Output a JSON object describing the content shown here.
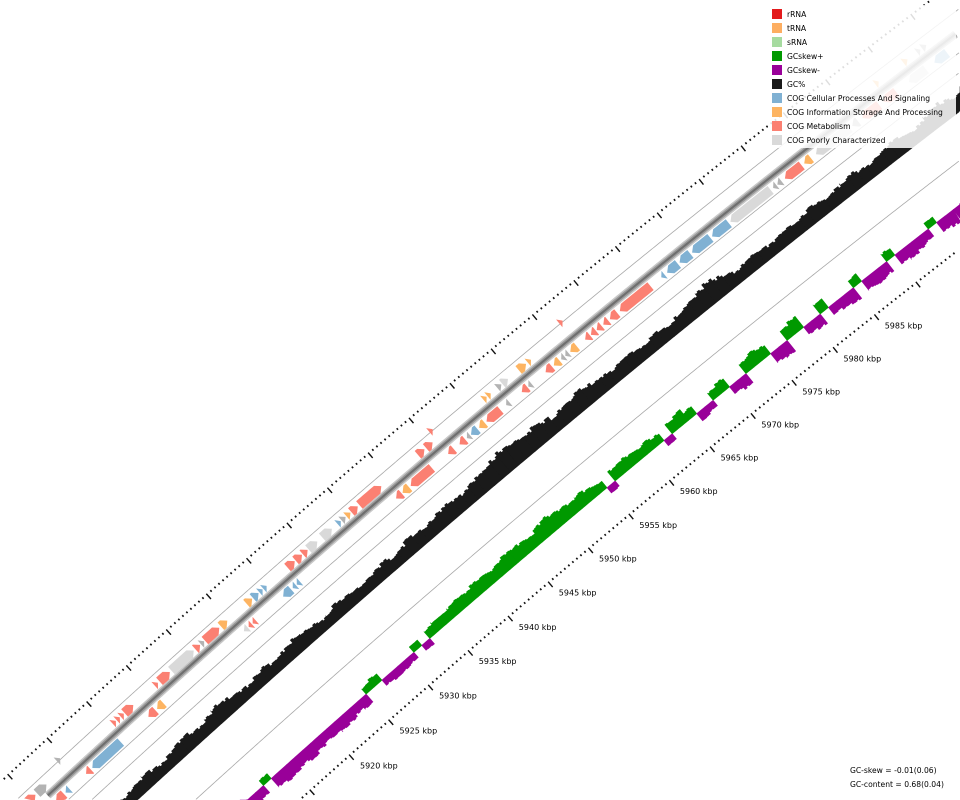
{
  "legend": {
    "items": [
      {
        "label": "rRNA",
        "color": "#e31a1c"
      },
      {
        "label": "tRNA",
        "color": "#fdae61"
      },
      {
        "label": "sRNA",
        "color": "#a6dba0"
      },
      {
        "label": "GCskew+",
        "color": "#009900"
      },
      {
        "label": "GCskew-",
        "color": "#990099"
      },
      {
        "label": "GC%",
        "color": "#1a1a1a"
      },
      {
        "label": "COG Cellular Processes And Signaling",
        "color": "#80b1d3"
      },
      {
        "label": "COG Information Storage And Processing",
        "color": "#fdb462"
      },
      {
        "label": "COG Metabolism",
        "color": "#fb8072"
      },
      {
        "label": "COG Poorly Characterized",
        "color": "#d9d9d9"
      }
    ]
  },
  "stats": {
    "gc_skew": "GC-skew = -0.01(0.06)",
    "gc_content": "GC-content = 0.68(0.04)"
  },
  "ruler": {
    "labels": [
      {
        "kbp": 5920,
        "label": "5920 kbp"
      },
      {
        "kbp": 5925,
        "label": "5925 kbp"
      },
      {
        "kbp": 5930,
        "label": "5930 kbp"
      },
      {
        "kbp": 5935,
        "label": "5935 kbp"
      },
      {
        "kbp": 5940,
        "label": "5940 kbp"
      },
      {
        "kbp": 5945,
        "label": "5945 kbp"
      },
      {
        "kbp": 5950,
        "label": "5950 kbp"
      },
      {
        "kbp": 5955,
        "label": "5955 kbp"
      },
      {
        "kbp": 5960,
        "label": "5960 kbp"
      },
      {
        "kbp": 5965,
        "label": "5965 kbp"
      },
      {
        "kbp": 5970,
        "label": "5970 kbp"
      },
      {
        "kbp": 5975,
        "label": "5975 kbp"
      },
      {
        "kbp": 5980,
        "label": "5980 kbp"
      },
      {
        "kbp": 5985,
        "label": "5985 kbp"
      }
    ]
  },
  "category_colors": {
    "cell": "#80b1d3",
    "info": "#fdb462",
    "met": "#fb8072",
    "poor": "#d9d9d9",
    "none": "#b3b3b3"
  },
  "features": [
    [
      5893.4,
      5894.4,
      1,
      "cell",
      1
    ],
    [
      5894.6,
      5895.6,
      1,
      "met",
      1
    ],
    [
      5895.8,
      5897.0,
      1,
      "none",
      1
    ],
    [
      5899.2,
      5899.6,
      1,
      "none",
      2
    ],
    [
      5905.4,
      5905.8,
      1,
      "met",
      1
    ],
    [
      5905.9,
      5906.3,
      1,
      "met",
      1
    ],
    [
      5906.4,
      5906.8,
      1,
      "met",
      1
    ],
    [
      5906.9,
      5908.0,
      1,
      "met",
      1
    ],
    [
      5910.7,
      5911.1,
      1,
      "met",
      1
    ],
    [
      5911.3,
      5912.6,
      1,
      "met",
      1
    ],
    [
      5912.8,
      5915.6,
      1,
      "poor",
      1
    ],
    [
      5915.8,
      5916.4,
      1,
      "met",
      1
    ],
    [
      5916.5,
      5916.9,
      1,
      "none",
      1
    ],
    [
      5917.0,
      5918.8,
      1,
      "met",
      1
    ],
    [
      5919.0,
      5919.8,
      1,
      "info",
      1
    ],
    [
      5922.2,
      5922.9,
      1,
      "info",
      1
    ],
    [
      5923.0,
      5923.7,
      1,
      "cell",
      1
    ],
    [
      5923.8,
      5924.2,
      1,
      "cell",
      1
    ],
    [
      5924.3,
      5924.7,
      1,
      "cell",
      1
    ],
    [
      5927.3,
      5928.2,
      1,
      "met",
      1
    ],
    [
      5928.3,
      5929.1,
      1,
      "met",
      1
    ],
    [
      5929.2,
      5929.8,
      1,
      "met",
      1
    ],
    [
      5929.9,
      5931.0,
      1,
      "poor",
      1
    ],
    [
      5931.6,
      5932.8,
      1,
      "poor",
      1
    ],
    [
      5933.5,
      5933.9,
      1,
      "cell",
      1
    ],
    [
      5934.0,
      5934.5,
      1,
      "none",
      1
    ],
    [
      5934.6,
      5935.1,
      1,
      "info",
      1
    ],
    [
      5935.2,
      5936.0,
      1,
      "met",
      1
    ],
    [
      5936.2,
      5938.9,
      1,
      "met",
      1
    ],
    [
      5943.4,
      5944.2,
      1,
      "met",
      1
    ],
    [
      5944.4,
      5945.2,
      1,
      "met",
      1
    ],
    [
      5945.6,
      5946.0,
      1,
      "met",
      2
    ],
    [
      5951.4,
      5951.8,
      1,
      "info",
      1
    ],
    [
      5951.9,
      5952.3,
      1,
      "info",
      1
    ],
    [
      5953.1,
      5953.6,
      1,
      "none",
      1
    ],
    [
      5953.7,
      5954.4,
      1,
      "poor",
      1
    ],
    [
      5955.7,
      5956.6,
      1,
      "info",
      1
    ],
    [
      5956.8,
      5957.2,
      1,
      "info",
      1
    ],
    [
      5961.4,
      5961.8,
      1,
      "met",
      2
    ],
    [
      5998.4,
      5998.8,
      1,
      "info",
      1
    ],
    [
      6001.7,
      6002.2,
      1,
      "info",
      1
    ],
    [
      6003.3,
      6003.7,
      1,
      "none",
      1
    ],
    [
      6003.9,
      6004.4,
      1,
      "none",
      1
    ],
    [
      5896.6,
      5897.6,
      -1,
      "met",
      1
    ],
    [
      5897.8,
      5898.3,
      -1,
      "cell",
      1
    ],
    [
      5900.4,
      5901.0,
      -1,
      "met",
      1
    ],
    [
      5901.2,
      5904.8,
      -1,
      "cell",
      1
    ],
    [
      5908.3,
      5909.2,
      -1,
      "met",
      1
    ],
    [
      5909.4,
      5910.2,
      -1,
      "info",
      1
    ],
    [
      5920.3,
      5920.8,
      -1,
      "poor",
      1
    ],
    [
      5920.9,
      5921.3,
      -1,
      "met",
      1
    ],
    [
      5921.4,
      5921.8,
      -1,
      "met",
      1
    ],
    [
      5925.2,
      5926.2,
      -1,
      "cell",
      1
    ],
    [
      5926.4,
      5926.8,
      -1,
      "cell",
      1
    ],
    [
      5926.9,
      5927.3,
      -1,
      "cell",
      1
    ],
    [
      5939.2,
      5939.9,
      -1,
      "met",
      1
    ],
    [
      5940.0,
      5940.8,
      -1,
      "info",
      1
    ],
    [
      5941.0,
      5943.6,
      -1,
      "met",
      1
    ],
    [
      5945.6,
      5946.3,
      -1,
      "met",
      1
    ],
    [
      5947.0,
      5947.7,
      -1,
      "met",
      1
    ],
    [
      5947.9,
      5948.3,
      -1,
      "none",
      1
    ],
    [
      5948.4,
      5949.2,
      -1,
      "cell",
      1
    ],
    [
      5949.4,
      5950.1,
      -1,
      "info",
      1
    ],
    [
      5950.3,
      5952.0,
      -1,
      "met",
      1
    ],
    [
      5952.7,
      5953.1,
      -1,
      "none",
      1
    ],
    [
      5954.6,
      5955.3,
      -1,
      "met",
      1
    ],
    [
      5955.4,
      5955.8,
      -1,
      "none",
      1
    ],
    [
      5957.5,
      5958.3,
      -1,
      "met",
      1
    ],
    [
      5958.5,
      5959.2,
      -1,
      "info",
      1
    ],
    [
      5959.4,
      5959.8,
      -1,
      "none",
      1
    ],
    [
      5959.9,
      5960.3,
      -1,
      "none",
      1
    ],
    [
      5960.5,
      5961.3,
      -1,
      "info",
      1
    ],
    [
      5962.3,
      5962.9,
      -1,
      "met",
      1
    ],
    [
      5963.0,
      5963.6,
      -1,
      "met",
      1
    ],
    [
      5963.7,
      5964.3,
      -1,
      "met",
      1
    ],
    [
      5964.5,
      5965.1,
      -1,
      "met",
      1
    ],
    [
      5965.3,
      5966.2,
      -1,
      "met",
      1
    ],
    [
      5966.5,
      5970.2,
      -1,
      "met",
      1
    ],
    [
      5971.5,
      5971.9,
      -1,
      "cell",
      1
    ],
    [
      5972.2,
      5973.5,
      -1,
      "cell",
      1
    ],
    [
      5973.7,
      5975.0,
      -1,
      "cell",
      1
    ],
    [
      5975.2,
      5977.4,
      -1,
      "cell",
      1
    ],
    [
      5977.6,
      5979.6,
      -1,
      "cell",
      1
    ],
    [
      5979.8,
      5984.6,
      -1,
      "poor",
      1
    ],
    [
      5984.9,
      5985.3,
      -1,
      "none",
      1
    ],
    [
      5985.4,
      5985.9,
      -1,
      "none",
      1
    ],
    [
      5986.3,
      5988.3,
      -1,
      "met",
      1
    ],
    [
      5988.6,
      5989.4,
      -1,
      "info",
      1
    ],
    [
      5990.0,
      5994.0,
      -1,
      "poor",
      1
    ],
    [
      5994.3,
      5995.0,
      -1,
      "none",
      1
    ],
    [
      5995.5,
      5997.5,
      -1,
      "met",
      1
    ],
    [
      5998.0,
      5999.5,
      -1,
      "met",
      1
    ],
    [
      6001.0,
      6003.0,
      -1,
      "poor",
      1
    ],
    [
      6004.0,
      6005.5,
      -1,
      "cell",
      1
    ]
  ],
  "gc_content": {
    "start_kbp": 5893,
    "values": [
      0.3,
      0.4,
      0.5,
      0.7,
      0.85,
      0.8,
      0.6,
      0.4,
      0.35,
      0.4,
      0.45,
      0.5,
      0.4,
      0.35,
      0.45,
      0.5,
      0.55,
      0.45,
      0.4,
      0.5,
      0.6,
      0.55,
      0.45,
      0.4,
      0.35,
      0.45,
      0.5,
      0.4,
      0.45,
      0.5,
      0.55,
      0.5,
      0.45,
      0.35,
      0.4,
      0.5,
      0.45,
      0.4,
      0.35,
      0.4,
      0.45,
      0.5,
      0.4,
      0.45,
      0.55,
      0.5,
      0.45,
      0.5,
      0.55,
      0.6,
      0.55,
      0.5,
      0.6,
      0.65,
      0.7,
      0.75,
      0.8,
      0.75,
      0.7,
      0.65,
      0.7,
      0.6,
      0.5,
      0.55,
      0.6,
      0.65,
      0.6,
      0.55,
      0.5,
      0.45,
      0.5,
      0.55,
      0.45,
      0.4,
      0.5,
      0.45,
      0.4,
      0.5,
      0.55,
      0.6,
      0.7,
      0.75,
      0.65,
      0.5,
      0.4,
      0.45,
      0.5,
      0.45,
      0.4,
      0.45,
      0.5,
      0.45,
      0.5,
      0.55,
      0.5,
      0.45,
      0.5,
      0.55,
      0.6,
      0.5,
      0.45,
      0.5,
      0.55,
      0.6,
      0.5,
      0.45,
      0.5,
      0.6,
      0.7,
      0.6,
      0.5,
      0.55,
      0.6,
      0.5,
      0.45,
      0.5,
      0.55,
      0.5
    ]
  },
  "gc_skew": {
    "start_kbp": 5893,
    "values": [
      0.5,
      0.6,
      0.5,
      0.3,
      -0.4,
      -0.5,
      -0.6,
      -0.5,
      -0.55,
      -0.6,
      -0.5,
      -0.6,
      -0.7,
      -0.6,
      -0.5,
      -0.55,
      -0.6,
      -0.5,
      -0.4,
      0.3,
      -0.5,
      -0.6,
      -0.55,
      -0.5,
      -0.6,
      -0.5,
      -0.45,
      -0.5,
      -0.55,
      -0.5,
      -0.4,
      -0.5,
      0.3,
      0.4,
      -0.3,
      -0.4,
      -0.35,
      -0.3,
      0.3,
      -0.3,
      0.4,
      0.5,
      0.45,
      0.5,
      0.55,
      0.5,
      0.6,
      0.55,
      0.5,
      0.6,
      0.7,
      0.65,
      0.6,
      0.55,
      0.7,
      0.75,
      0.65,
      0.6,
      0.55,
      0.6,
      0.5,
      0.4,
      -0.3,
      0.5,
      0.55,
      0.5,
      0.45,
      0.5,
      0.4,
      -0.3,
      0.5,
      0.6,
      0.4,
      -0.4,
      -0.3,
      0.4,
      0.5,
      -0.4,
      -0.5,
      0.5,
      0.6,
      0.5,
      -0.5,
      -0.6,
      0.5,
      0.6,
      -0.4,
      -0.5,
      0.5,
      -0.4,
      -0.5,
      -0.6,
      0.4,
      -0.5,
      -0.6,
      -0.5,
      0.4,
      -0.5,
      -0.6,
      -0.5,
      -0.4,
      0.3,
      -0.5,
      -0.6,
      -0.5,
      -0.4,
      -0.5,
      -0.6,
      -0.5,
      0.3,
      -0.5,
      -0.6,
      -0.5,
      -0.4,
      -0.5,
      -0.5,
      -0.6,
      -0.5
    ]
  }
}
